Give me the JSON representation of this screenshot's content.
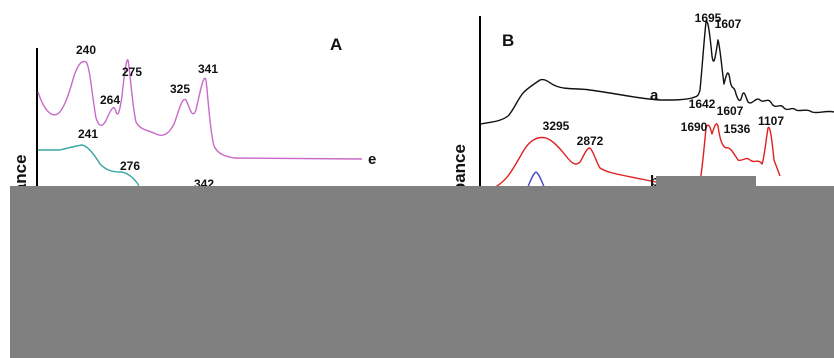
{
  "chart_data": [
    {
      "panel": "A",
      "type": "line",
      "ylabel": "sorbance",
      "colors": {
        "e": "#c86bc8",
        "d": "#3aa6a6",
        "c": "#4a4ac8"
      },
      "series": [
        {
          "name": "e",
          "peak_labels": [
            "240",
            "264",
            "275",
            "325",
            "341"
          ]
        },
        {
          "name": "",
          "peak_labels": [
            "241",
            "276"
          ]
        },
        {
          "name": "",
          "peak_labels": [
            "342"
          ]
        }
      ]
    },
    {
      "panel": "B",
      "type": "line",
      "ylabel": "osorbance",
      "colors": {
        "a": "#111111",
        "b": "#e02020",
        "c": "#4a4ac8"
      },
      "series": [
        {
          "name": "a",
          "peak_labels": [
            "1695",
            "1607"
          ]
        },
        {
          "name": "b",
          "peak_labels": [
            "3295",
            "2872",
            "1642",
            "1607",
            "1690",
            "1536",
            "1107"
          ]
        },
        {
          "name": "",
          "peak_labels": []
        }
      ]
    }
  ],
  "overlay_color": "#808080"
}
